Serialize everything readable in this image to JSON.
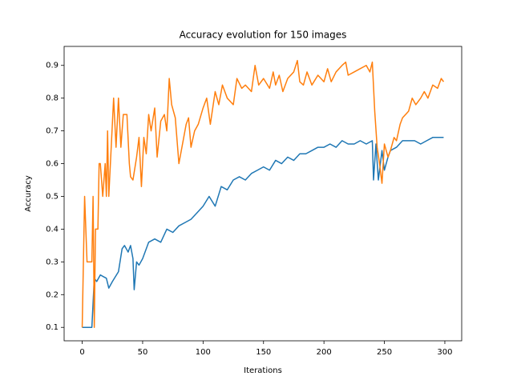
{
  "chart_data": {
    "type": "line",
    "title": "Accuracy evolution for 150 images",
    "x_label": "Iterations",
    "y_label": "Accuracy",
    "xlim": [
      -14.95,
      313.95
    ],
    "ylim": [
      0.059,
      0.958
    ],
    "xticks": [
      0,
      50,
      100,
      150,
      200,
      250,
      300
    ],
    "yticks": [
      0.1,
      0.2,
      0.3,
      0.4,
      0.5,
      0.6,
      0.7,
      0.8,
      0.9
    ],
    "grid": false,
    "series": [
      {
        "color": "#1f77b4",
        "x": [
          0,
          8,
          10,
          12,
          15,
          20,
          22,
          25,
          30,
          33,
          35,
          38,
          40,
          42,
          43,
          45,
          47,
          50,
          55,
          60,
          65,
          70,
          75,
          80,
          85,
          90,
          95,
          100,
          105,
          110,
          115,
          120,
          125,
          130,
          135,
          140,
          145,
          150,
          155,
          160,
          165,
          170,
          175,
          180,
          185,
          190,
          195,
          200,
          205,
          210,
          215,
          220,
          225,
          230,
          235,
          240,
          241,
          243,
          245,
          248,
          250,
          253,
          255,
          260,
          265,
          270,
          275,
          280,
          285,
          290,
          295,
          299
        ],
        "values": [
          0.1,
          0.1,
          0.25,
          0.24,
          0.26,
          0.25,
          0.22,
          0.24,
          0.27,
          0.34,
          0.35,
          0.33,
          0.35,
          0.31,
          0.215,
          0.3,
          0.29,
          0.31,
          0.36,
          0.37,
          0.36,
          0.4,
          0.39,
          0.41,
          0.42,
          0.43,
          0.45,
          0.47,
          0.5,
          0.47,
          0.53,
          0.52,
          0.55,
          0.56,
          0.55,
          0.57,
          0.58,
          0.59,
          0.58,
          0.61,
          0.6,
          0.62,
          0.61,
          0.63,
          0.63,
          0.64,
          0.65,
          0.65,
          0.66,
          0.65,
          0.67,
          0.66,
          0.66,
          0.67,
          0.66,
          0.67,
          0.55,
          0.66,
          0.55,
          0.64,
          0.58,
          0.62,
          0.64,
          0.65,
          0.67,
          0.67,
          0.67,
          0.66,
          0.67,
          0.68,
          0.68,
          0.68
        ]
      },
      {
        "color": "#ff7f0e",
        "x": [
          0,
          2,
          4,
          8,
          9,
          10,
          11,
          13,
          14,
          15,
          17,
          19,
          20,
          21,
          22,
          24,
          26,
          28,
          30,
          32,
          34,
          37,
          39,
          40,
          42,
          45,
          47,
          49,
          51,
          53,
          55,
          57,
          60,
          62,
          65,
          68,
          70,
          72,
          74,
          77,
          80,
          83,
          86,
          88,
          90,
          93,
          96,
          100,
          103,
          106,
          110,
          113,
          116,
          120,
          125,
          128,
          132,
          135,
          140,
          143,
          146,
          150,
          155,
          158,
          160,
          163,
          166,
          170,
          175,
          178,
          180,
          183,
          186,
          190,
          195,
          200,
          203,
          206,
          210,
          215,
          218,
          220,
          225,
          230,
          235,
          238,
          240,
          242,
          244,
          246,
          248,
          250,
          253,
          255,
          258,
          260,
          263,
          265,
          270,
          273,
          276,
          280,
          283,
          286,
          290,
          294,
          297,
          299
        ],
        "values": [
          0.1,
          0.5,
          0.3,
          0.3,
          0.5,
          0.1,
          0.4,
          0.4,
          0.6,
          0.6,
          0.5,
          0.6,
          0.5,
          0.7,
          0.5,
          0.65,
          0.8,
          0.65,
          0.8,
          0.65,
          0.75,
          0.75,
          0.6,
          0.56,
          0.55,
          0.62,
          0.68,
          0.53,
          0.68,
          0.63,
          0.75,
          0.7,
          0.77,
          0.62,
          0.73,
          0.75,
          0.7,
          0.86,
          0.78,
          0.74,
          0.6,
          0.66,
          0.72,
          0.74,
          0.65,
          0.7,
          0.72,
          0.77,
          0.8,
          0.72,
          0.82,
          0.78,
          0.84,
          0.8,
          0.78,
          0.86,
          0.83,
          0.84,
          0.82,
          0.9,
          0.84,
          0.86,
          0.83,
          0.88,
          0.84,
          0.87,
          0.82,
          0.86,
          0.88,
          0.915,
          0.85,
          0.84,
          0.88,
          0.84,
          0.87,
          0.85,
          0.89,
          0.85,
          0.88,
          0.9,
          0.91,
          0.87,
          0.88,
          0.89,
          0.9,
          0.88,
          0.91,
          0.76,
          0.65,
          0.6,
          0.54,
          0.66,
          0.62,
          0.64,
          0.68,
          0.67,
          0.72,
          0.74,
          0.76,
          0.8,
          0.78,
          0.8,
          0.82,
          0.8,
          0.84,
          0.83,
          0.86,
          0.85
        ]
      }
    ]
  }
}
